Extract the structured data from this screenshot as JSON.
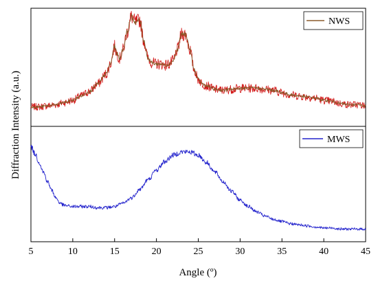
{
  "chart_data": [
    {
      "type": "line",
      "panel": "top",
      "xlabel": "Angle (º)",
      "ylabel": "Diffraction Intensity (a.u.)",
      "xlim": [
        5,
        45
      ],
      "ylim": [
        0,
        100
      ],
      "x_ticks": [],
      "y_ticks": [],
      "legend": {
        "position": "top-right"
      },
      "series": [
        {
          "name": "NWS",
          "color": "#8b5a2b",
          "noise_color": "#d01010",
          "x": [
            5,
            6,
            7,
            8,
            9,
            10,
            11,
            12,
            13,
            14,
            14.5,
            15,
            15.3,
            15.6,
            16,
            16.5,
            17,
            17.5,
            18,
            18.5,
            19,
            19.5,
            20,
            20.5,
            21,
            21.5,
            22,
            22.5,
            23,
            23.5,
            24,
            24.5,
            25,
            25.5,
            26,
            27,
            28,
            29,
            30,
            31,
            32,
            33,
            34,
            35,
            36,
            37,
            38,
            39,
            40,
            41,
            42,
            43,
            44,
            45
          ],
          "y": [
            14,
            14,
            15,
            16,
            18,
            20,
            24,
            28,
            35,
            44,
            53,
            69,
            62,
            58,
            66,
            82,
            96,
            91,
            93,
            74,
            58,
            54,
            53,
            53,
            52,
            53,
            56,
            66,
            80,
            80,
            66,
            48,
            39,
            35,
            33,
            30,
            29,
            30,
            31,
            31,
            31,
            30,
            29,
            27,
            25,
            24,
            23,
            22,
            20,
            19,
            17,
            16,
            16,
            15
          ]
        }
      ]
    },
    {
      "type": "line",
      "panel": "bottom",
      "xlabel": "Angle (º)",
      "ylabel": "Diffraction Intensity (a.u.)",
      "xlim": [
        5,
        45
      ],
      "ylim": [
        0,
        100
      ],
      "x_ticks": [
        5,
        10,
        15,
        20,
        25,
        30,
        35,
        40,
        45
      ],
      "y_ticks": [],
      "legend": {
        "position": "top-right"
      },
      "series": [
        {
          "name": "MWS",
          "color": "#2222cc",
          "x": [
            5,
            5.5,
            6,
            6.5,
            7,
            7.5,
            8,
            8.5,
            9,
            10,
            11,
            12,
            13,
            14,
            15,
            16,
            17,
            18,
            19,
            20,
            21,
            22,
            23,
            24,
            25,
            26,
            27,
            28,
            29,
            30,
            31,
            32,
            33,
            34,
            35,
            36,
            37,
            38,
            39,
            40,
            41,
            42,
            43,
            44,
            45
          ],
          "y": [
            85,
            78,
            70,
            61,
            52,
            44,
            37,
            32,
            30,
            29,
            29,
            29,
            28,
            28,
            29,
            32,
            37,
            45,
            54,
            63,
            71,
            77,
            80,
            80,
            77,
            70,
            61,
            52,
            43,
            35,
            29,
            24,
            20,
            17,
            15,
            13,
            12,
            11,
            10,
            9,
            9,
            8,
            8,
            8,
            8
          ]
        }
      ]
    }
  ]
}
